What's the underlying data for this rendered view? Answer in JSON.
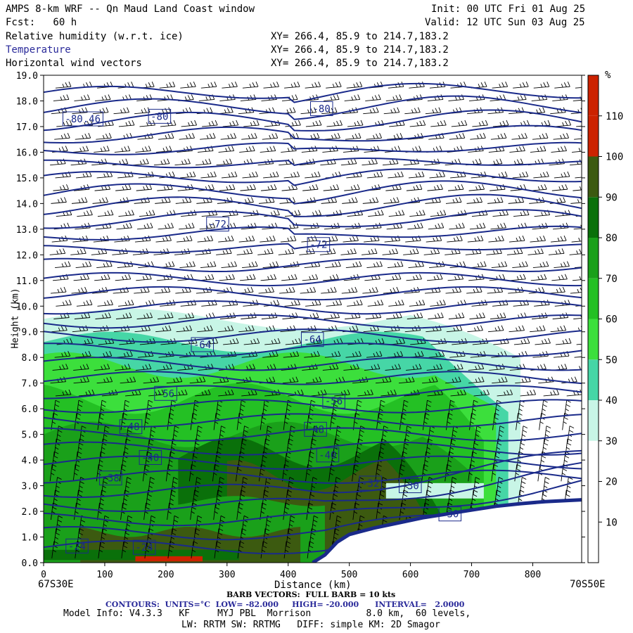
{
  "header": {
    "title": "AMPS 8-km WRF -- Qn Maud Land Coast window",
    "fcst_label": "Fcst:   60 h",
    "init": "Init: 00 UTC Fri 01 Aug 25",
    "valid": "Valid: 12 UTC Sun 03 Aug 25",
    "fields": [
      {
        "name": "Relative humidity (w.r.t. ice)",
        "xy": "XY= 266.4, 85.9 to 214.7,183.2"
      },
      {
        "name": "Temperature",
        "xy": "XY= 266.4, 85.9 to 214.7,183.2"
      },
      {
        "name": "Horizontal wind vectors",
        "xy": "XY= 266.4, 85.9 to 214.7,183.2"
      }
    ]
  },
  "colors": {
    "temperature": "#1a2a8a",
    "barbs": "#000000",
    "terrain": "#ffffff",
    "rh_scale": [
      "#ffffff",
      "#ffffff",
      "#ffffff",
      "#c8f5e6",
      "#46d6a6",
      "#3cdf3c",
      "#24c024",
      "#1aa01a",
      "#0a700a",
      "#3c5a10",
      "#cc2200"
    ]
  },
  "chart_data": {
    "type": "heatmap",
    "xlabel": "Distance (km)",
    "ylabel": "Height (km)",
    "xlim": [
      0,
      880
    ],
    "ylim": [
      0,
      19
    ],
    "x_ticks": [
      0,
      100,
      200,
      300,
      400,
      500,
      600,
      700,
      800
    ],
    "y_ticks": [
      "0.0",
      "1.0",
      "2.0",
      "3.0",
      "4.0",
      "5.0",
      "6.0",
      "7.0",
      "8.0",
      "9.0",
      "10.0",
      "11.0",
      "12.0",
      "13.0",
      "14.0",
      "15.0",
      "16.0",
      "17.0",
      "18.0",
      "19.0"
    ],
    "x_start_label": "67S30E",
    "x_end_label": "70S50E",
    "colorbar": {
      "unit": "%",
      "ticks": [
        10,
        20,
        30,
        40,
        50,
        60,
        70,
        80,
        90,
        100,
        110
      ],
      "levels": [
        0,
        10,
        20,
        30,
        40,
        50,
        60,
        70,
        80,
        90,
        100,
        110,
        120
      ]
    },
    "temperature_labels": [
      {
        "text": "-80.46",
        "x": 35,
        "y": 17.3
      },
      {
        "text": "-80",
        "x": 175,
        "y": 17.4
      },
      {
        "text": "-80",
        "x": 440,
        "y": 17.7
      },
      {
        "text": "-72",
        "x": 270,
        "y": 13.2
      },
      {
        "text": "-72",
        "x": 435,
        "y": 12.4
      },
      {
        "text": "-64",
        "x": 245,
        "y": 8.5
      },
      {
        "text": "-64",
        "x": 425,
        "y": 8.7
      },
      {
        "text": "-56",
        "x": 185,
        "y": 6.6
      },
      {
        "text": "-56",
        "x": 460,
        "y": 6.3
      },
      {
        "text": "-48",
        "x": 128,
        "y": 5.3
      },
      {
        "text": "-48",
        "x": 430,
        "y": 5.2
      },
      {
        "text": "-40",
        "x": 160,
        "y": 4.1
      },
      {
        "text": "-40",
        "x": 450,
        "y": 4.2
      },
      {
        "text": "-38",
        "x": 95,
        "y": 3.3
      },
      {
        "text": "-32",
        "x": 520,
        "y": 3.1
      },
      {
        "text": "-30",
        "x": 585,
        "y": 3.0
      },
      {
        "text": "-30",
        "x": 650,
        "y": 1.9
      },
      {
        "text": "-24",
        "x": 40,
        "y": 0.65
      },
      {
        "text": "-24",
        "x": 150,
        "y": 0.6
      }
    ],
    "terrain_profile": {
      "x": [
        0,
        440,
        460,
        480,
        500,
        540,
        580,
        620,
        660,
        700,
        740,
        780,
        820,
        880
      ],
      "y": [
        0,
        0,
        0.3,
        0.8,
        1.1,
        1.35,
        1.55,
        1.75,
        1.9,
        2.05,
        2.2,
        2.3,
        2.38,
        2.45
      ]
    }
  },
  "footer": {
    "barb_legend": "BARB VECTORS:  FULL BARB = 10 kts",
    "contours": "CONTOURS:  UNITS=°C  LOW= -82.000     HIGH= -20.000      INTERVAL=   2.0000",
    "model_info": "Model Info: V4.3.3   KF     MYJ PBL  Morrison          8.0 km,  60 levels,",
    "model_info2": "LW: RRTM SW: RRTMG   DIFF: simple KM: 2D Smagor"
  }
}
